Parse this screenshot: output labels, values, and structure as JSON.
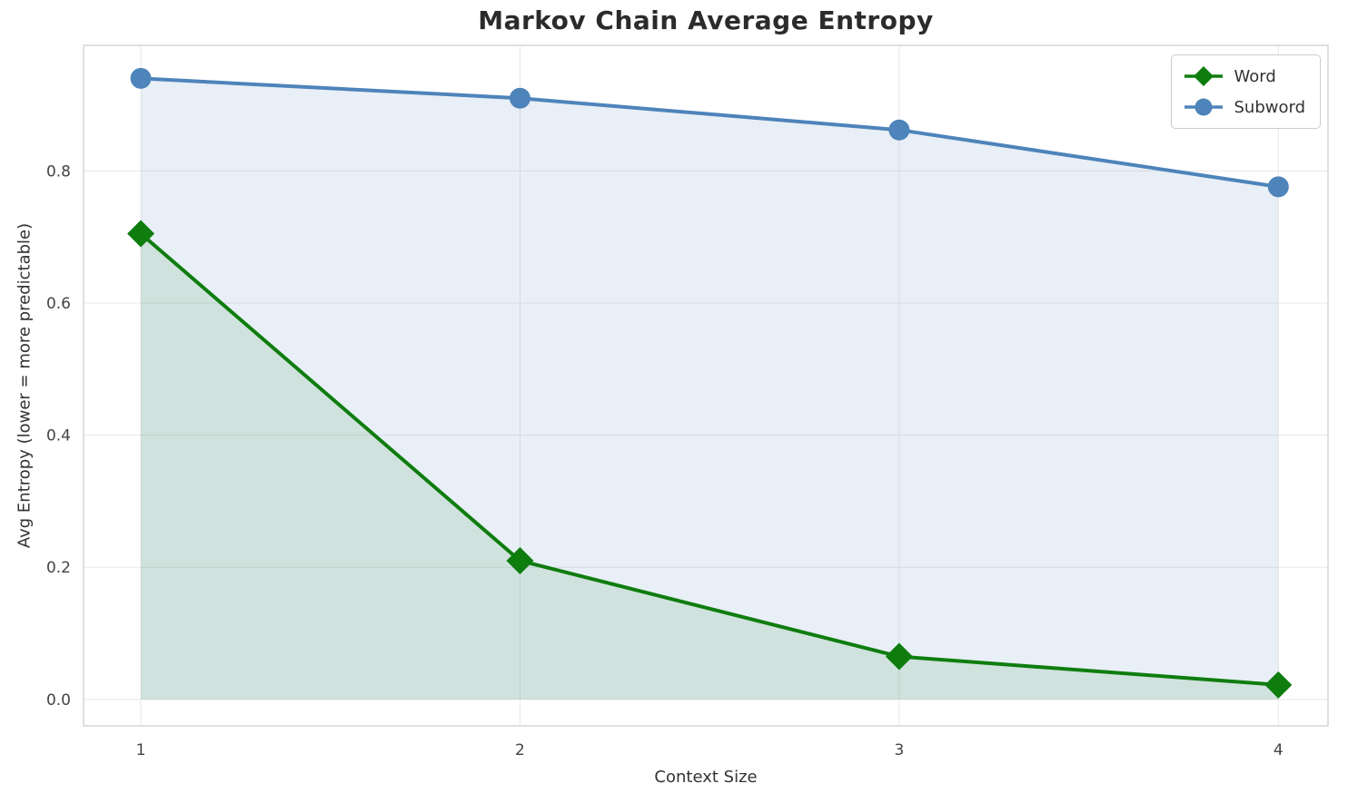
{
  "chart_data": {
    "type": "line",
    "title": "Markov Chain Average Entropy",
    "xlabel": "Context Size",
    "ylabel": "Avg Entropy (lower = more predictable)",
    "x": [
      1,
      2,
      3,
      4
    ],
    "series": [
      {
        "name": "Word",
        "values": [
          0.705,
          0.21,
          0.065,
          0.022
        ],
        "color": "#0e7d0e",
        "fill": "rgba(14, 125, 14, 0.11)",
        "marker": "diamond"
      },
      {
        "name": "Subword",
        "values": [
          0.94,
          0.91,
          0.862,
          0.776
        ],
        "color": "#4d84ba",
        "fill": "rgba(77, 132, 186, 0.13)",
        "marker": "circle"
      }
    ],
    "xticks": [
      "1",
      "2",
      "3",
      "4"
    ],
    "yticks": [
      0.0,
      0.2,
      0.4,
      0.6,
      0.8
    ],
    "xlim": [
      0.849,
      4.131
    ],
    "ylim": [
      -0.04,
      0.99
    ],
    "grid": true,
    "legend_position": "upper right",
    "area_baseline": 0.0,
    "frame_color": "#cfcfcf",
    "grid_color": "#e8e8e8"
  }
}
